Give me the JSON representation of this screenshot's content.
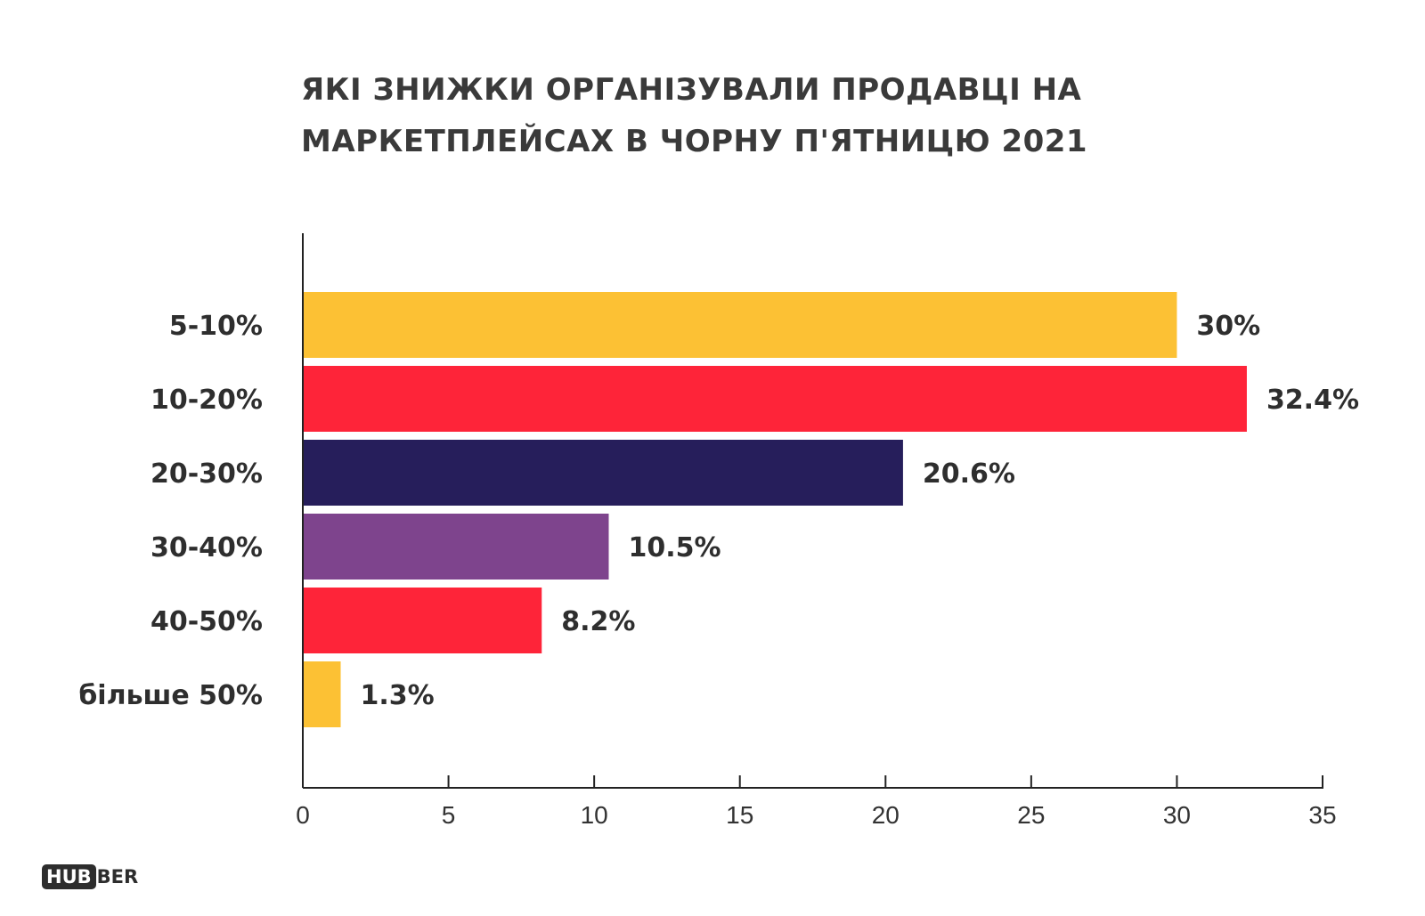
{
  "chart_data": {
    "type": "bar",
    "orientation": "horizontal",
    "title_lines": [
      "ЯКІ ЗНИЖКИ ОРГАНІЗУВАЛИ ПРОДАВЦІ НА",
      "МАРКЕТПЛЕЙСАХ В ЧОРНУ П'ЯТНИЦЮ 2021"
    ],
    "categories": [
      "5-10%",
      "10-20%",
      "20-30%",
      "30-40%",
      "40-50%",
      "більше 50%"
    ],
    "values": [
      30,
      32.4,
      20.6,
      10.5,
      8.2,
      1.3
    ],
    "value_labels": [
      "30%",
      "32.4%",
      "20.6%",
      "10.5%",
      "8.2%",
      "1.3%"
    ],
    "bar_colors": [
      "#FCC134",
      "#FE2439",
      "#261E5B",
      "#7E448D",
      "#FE2439",
      "#FCC134"
    ],
    "xlim": [
      0,
      35
    ],
    "x_ticks": [
      0,
      5,
      10,
      15,
      20,
      25,
      30,
      35
    ],
    "grid": false,
    "legend": "none"
  },
  "logo": {
    "boxed": "HUB",
    "rest": "BER"
  }
}
